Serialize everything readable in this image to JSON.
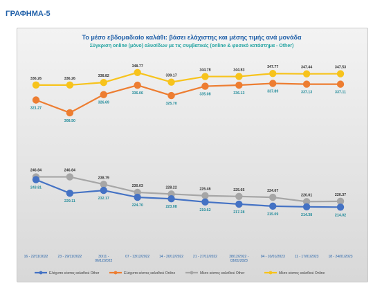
{
  "heading": "ΓΡΑΦΗΜΑ-5",
  "chart_data": {
    "type": "line",
    "title": "Το μέσο εβδομαδιαίο καλάθι: βάσει ελάχιστης και μέσης τιμής ανά μονάδα",
    "subtitle": "Σύγκριση online (μόνο) αλυσίδων με τις συμβατικές (online & φυσικό κατάστημα - Other)",
    "categories": [
      [
        "16 - 22/11/2022"
      ],
      [
        "23 - 29/11/2022"
      ],
      [
        "30/11 -",
        "06/12/2022"
      ],
      [
        "07 - 13/12/2022"
      ],
      [
        "14 - 20/12/2022"
      ],
      [
        "21 - 27/12/2022"
      ],
      [
        "28/12/2022 -",
        "03/01/2023"
      ],
      [
        "04 - 10/01/2023"
      ],
      [
        "11 - 17/01/2023"
      ],
      [
        "18 - 24/01/2023"
      ]
    ],
    "series": [
      {
        "name": "Μέσο κόστος καλαθιού  Online",
        "color": "#f7c31c",
        "group": "upper",
        "labelPos": "above",
        "labelColor": "#333333",
        "values": [
          336.26,
          336.26,
          338.82,
          348.77,
          339.17,
          344.78,
          344.83,
          347.77,
          347.44,
          347.53
        ]
      },
      {
        "name": "Ελάχιστο κόστος καλαθιού  Online",
        "color": "#ed7d31",
        "group": "upper",
        "labelPos": "below",
        "labelColor": "#1f8a99",
        "values": [
          321.27,
          308.5,
          326.69,
          336.06,
          325.7,
          335.08,
          336.13,
          337.89,
          337.13,
          337.11
        ]
      },
      {
        "name": "Μέσο κόστος καλαθιού  Other",
        "color": "#a6a6a6",
        "group": "lower",
        "labelPos": "above",
        "labelColor": "#333333",
        "values": [
          246.84,
          246.84,
          238.79,
          230.03,
          228.22,
          226.46,
          225.65,
          224.67,
          220.01,
          220.37
        ]
      },
      {
        "name": "Ελάχιστο κόστος καλαθιού  Other",
        "color": "#4472c4",
        "group": "lower",
        "labelPos": "below",
        "labelColor": "#1f8a99",
        "values": [
          243.81,
          229.11,
          232.17,
          224.7,
          223.08,
          219.62,
          217.28,
          215.09,
          214.38,
          214.02
        ]
      }
    ],
    "legend_order": [
      3,
      1,
      2,
      0
    ],
    "legend_position": "bottom",
    "grid": false
  }
}
